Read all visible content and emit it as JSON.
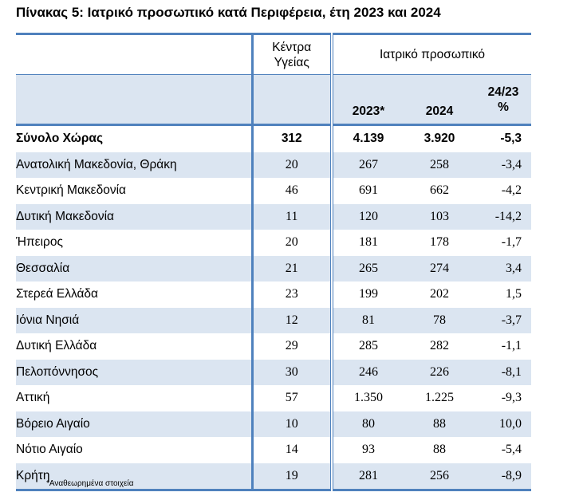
{
  "title": "Πίνακας 5: Ιατρικό προσωπικό κατά Περιφέρεια, έτη 2023 και 2024",
  "header": {
    "kentra_line1": "Κέντρα",
    "kentra_line2": "Υγείας",
    "medical_staff": "Ιατρικό προσωπικό",
    "year_2023": "2023*",
    "year_2024": "2024",
    "change_line1": "24/23",
    "change_line2": "%"
  },
  "rows": [
    {
      "region": "Σύνολο Χώρας",
      "kentra": "312",
      "y2023": "4.139",
      "y2024": "3.920",
      "change": "-5,3"
    },
    {
      "region": "Ανατολική Μακεδονία, Θράκη",
      "kentra": "20",
      "y2023": "267",
      "y2024": "258",
      "change": "-3,4"
    },
    {
      "region": "Κεντρική Μακεδονία",
      "kentra": "46",
      "y2023": "691",
      "y2024": "662",
      "change": "-4,2"
    },
    {
      "region": "Δυτική Μακεδονία",
      "kentra": "11",
      "y2023": "120",
      "y2024": "103",
      "change": "-14,2"
    },
    {
      "region": "Ήπειρος",
      "kentra": "20",
      "y2023": "181",
      "y2024": "178",
      "change": "-1,7"
    },
    {
      "region": "Θεσσαλία",
      "kentra": "21",
      "y2023": "265",
      "y2024": "274",
      "change": "3,4"
    },
    {
      "region": "Στερεά Ελλάδα",
      "kentra": "23",
      "y2023": "199",
      "y2024": "202",
      "change": "1,5"
    },
    {
      "region": "Ιόνια Νησιά",
      "kentra": "12",
      "y2023": "81",
      "y2024": "78",
      "change": "-3,7"
    },
    {
      "region": "Δυτική Ελλάδα",
      "kentra": "29",
      "y2023": "285",
      "y2024": "282",
      "change": "-1,1"
    },
    {
      "region": "Πελοπόννησος",
      "kentra": "30",
      "y2023": "246",
      "y2024": "226",
      "change": "-8,1"
    },
    {
      "region": "Αττική",
      "kentra": "57",
      "y2023": "1.350",
      "y2024": "1.225",
      "change": "-9,3"
    },
    {
      "region": "Βόρειο Αιγαίο",
      "kentra": "10",
      "y2023": "80",
      "y2024": "88",
      "change": "10,0"
    },
    {
      "region": "Νότιο Αιγαίο",
      "kentra": "14",
      "y2023": "93",
      "y2024": "88",
      "change": "-5,4"
    },
    {
      "region": "Κρήτη",
      "kentra": "19",
      "y2023": "281",
      "y2024": "256",
      "change": "-8,9"
    }
  ],
  "footnote": "*Αναθεωρημένα στοιχεία",
  "colors": {
    "accent_blue": "#4f81bd",
    "band_fill": "#dbe5f1"
  }
}
